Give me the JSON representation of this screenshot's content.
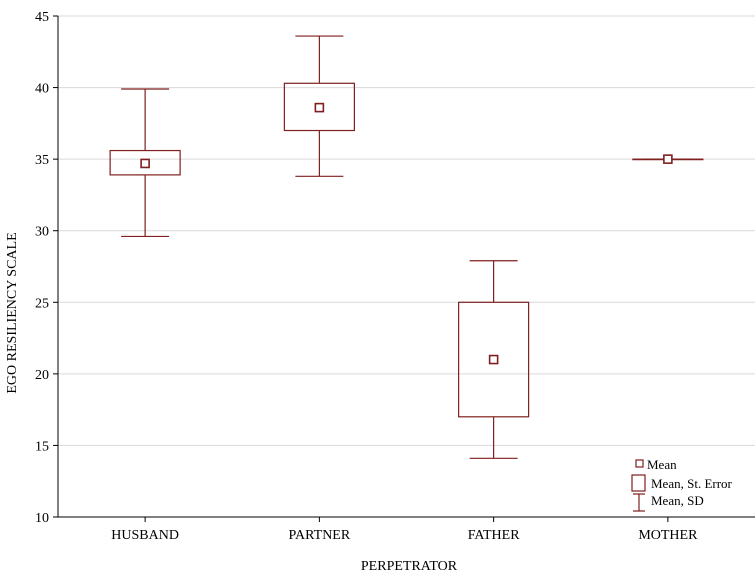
{
  "chart_data": {
    "type": "box",
    "xlabel": "PERPETRATOR",
    "ylabel": "EGO RESILIENCY SCALE",
    "ylim": [
      10,
      45
    ],
    "yticks": [
      10,
      15,
      20,
      25,
      30,
      35,
      40,
      45
    ],
    "grid": true,
    "legend_placement": "bottom-right",
    "categories": [
      "HUSBAND",
      "PARTNER",
      "FATHER",
      "MOTHER"
    ],
    "series": [
      {
        "category": "HUSBAND",
        "mean": 34.7,
        "se_low": 33.9,
        "se_high": 35.6,
        "sd_low": 29.6,
        "sd_high": 39.9
      },
      {
        "category": "PARTNER",
        "mean": 38.6,
        "se_low": 37.0,
        "se_high": 40.3,
        "sd_low": 33.8,
        "sd_high": 43.6
      },
      {
        "category": "FATHER",
        "mean": 21.0,
        "se_low": 17.0,
        "se_high": 25.0,
        "sd_low": 14.1,
        "sd_high": 27.9
      },
      {
        "category": "MOTHER",
        "mean": 35.0,
        "se_low": 35.0,
        "se_high": 35.0,
        "sd_low": 35.0,
        "sd_high": 35.0
      }
    ],
    "legend": [
      "Mean",
      "Mean, St. Error",
      "Mean, SD"
    ],
    "colors": {
      "marks": "#7f1f1f",
      "grid": "#d9d9d9",
      "axis": "#000000"
    }
  }
}
